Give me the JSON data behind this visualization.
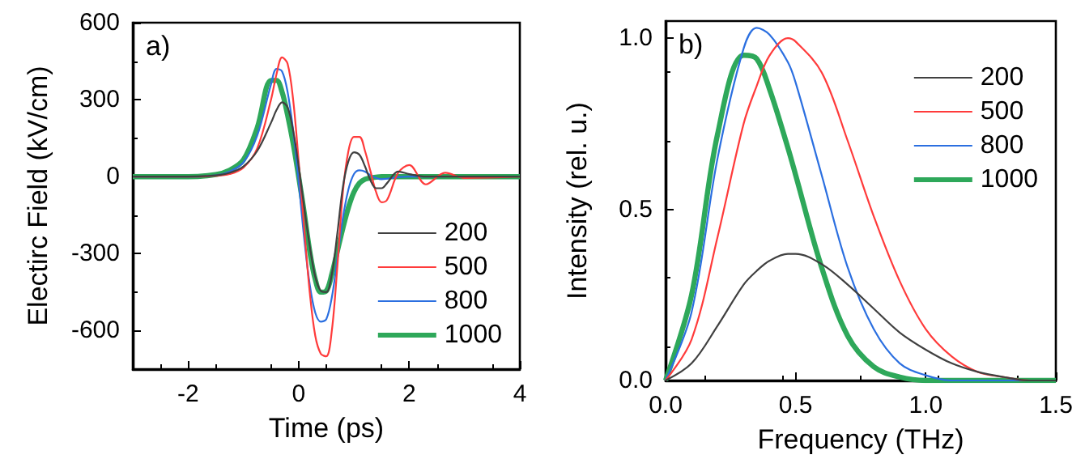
{
  "chart_data": [
    {
      "type": "line",
      "xlabel": "Time (ps)",
      "ylabel": "Electirc Field (kV/cm)",
      "annotations": [
        "a)"
      ],
      "x": [
        -3,
        -2,
        -1.5,
        -1.25,
        -1,
        -0.75,
        -0.5,
        -0.4,
        -0.3,
        -0.2,
        -0.1,
        0,
        0.1,
        0.2,
        0.3,
        0.4,
        0.5,
        0.6,
        0.7,
        0.8,
        0.9,
        1.0,
        1.1,
        1.2,
        1.3,
        1.4,
        1.5,
        1.6,
        1.8,
        2.0,
        2.3,
        2.65,
        3,
        4
      ],
      "series": [
        {
          "name": "200",
          "color": "#404040",
          "values": [
            0,
            0,
            5,
            15,
            40,
            100,
            210,
            260,
            290,
            270,
            180,
            40,
            -120,
            -270,
            -390,
            -445,
            -450,
            -380,
            -220,
            -40,
            60,
            95,
            85,
            40,
            -15,
            -45,
            -45,
            -25,
            20,
            10,
            0,
            0,
            0,
            0
          ]
        },
        {
          "name": "500",
          "color": "#ff3b3b",
          "values": [
            0,
            0,
            3,
            10,
            35,
            110,
            300,
            400,
            465,
            440,
            300,
            60,
            -200,
            -450,
            -620,
            -690,
            -700,
            -600,
            -350,
            -60,
            100,
            155,
            155,
            100,
            20,
            -60,
            -100,
            -90,
            15,
            45,
            -30,
            15,
            -5,
            0
          ]
        },
        {
          "name": "800",
          "color": "#2b6fe0",
          "values": [
            0,
            0,
            5,
            20,
            55,
            160,
            360,
            420,
            410,
            330,
            180,
            -20,
            -240,
            -420,
            -530,
            -565,
            -555,
            -470,
            -320,
            -160,
            -50,
            10,
            25,
            20,
            5,
            -5,
            -10,
            -8,
            -2,
            0,
            0,
            0,
            null,
            null
          ]
        },
        {
          "name": "1000",
          "color": "#2ea85a",
          "values": [
            0,
            0,
            8,
            25,
            65,
            190,
            375,
            375,
            330,
            240,
            130,
            0,
            -140,
            -290,
            -400,
            -450,
            -445,
            -380,
            -290,
            -200,
            -120,
            -60,
            -25,
            -10,
            -5,
            -2,
            0,
            0,
            0,
            0,
            0,
            0,
            0,
            0
          ]
        }
      ],
      "xlim": [
        -3,
        4
      ],
      "xticks": [
        -2,
        0,
        2,
        4
      ],
      "ylim": [
        -750,
        600
      ],
      "yticks": [
        -600,
        -300,
        0,
        300,
        600
      ],
      "grid": false,
      "legend": "bottom right",
      "marker": "none",
      "line_style": "solid"
    },
    {
      "type": "line",
      "xlabel": "Frequency (THz)",
      "ylabel": "Intensity (rel. u.)",
      "annotations": [
        "b)"
      ],
      "x": [
        0,
        0.1,
        0.2,
        0.3,
        0.35,
        0.4,
        0.47,
        0.5,
        0.6,
        0.7,
        0.8,
        0.9,
        1.0,
        1.1,
        1.2,
        1.3,
        1.4,
        1.5
      ],
      "series": [
        {
          "name": "200",
          "color": "#404040",
          "values": [
            0,
            0.05,
            0.16,
            0.28,
            0.32,
            0.35,
            0.37,
            0.37,
            0.34,
            0.28,
            0.21,
            0.14,
            0.09,
            0.05,
            0.025,
            0.01,
            0,
            0
          ]
        },
        {
          "name": "500",
          "color": "#ff3b3b",
          "values": [
            0,
            0.12,
            0.42,
            0.75,
            0.86,
            0.95,
            1.0,
            0.99,
            0.9,
            0.7,
            0.48,
            0.29,
            0.15,
            0.07,
            0.025,
            0.01,
            0,
            0
          ]
        },
        {
          "name": "800",
          "color": "#2b6fe0",
          "values": [
            0,
            0.2,
            0.65,
            0.97,
            1.03,
            1.01,
            0.93,
            0.87,
            0.6,
            0.33,
            0.15,
            0.05,
            0.015,
            0,
            0,
            0,
            0,
            0
          ]
        },
        {
          "name": "1000",
          "color": "#2ea85a",
          "values": [
            0,
            0.25,
            0.72,
            0.95,
            0.94,
            0.85,
            0.68,
            0.6,
            0.33,
            0.13,
            0.04,
            0.01,
            0,
            0,
            0,
            0,
            0,
            0
          ]
        }
      ],
      "xlim": [
        0,
        1.5
      ],
      "xticks": [
        {
          "value": 0,
          "label": "0.0"
        },
        0.5,
        {
          "value": 1,
          "label": "1.0"
        },
        1.5
      ],
      "ylim": [
        0,
        1.05
      ],
      "yticks": [
        {
          "value": 0,
          "label": "0.0"
        },
        0.5,
        {
          "value": 1,
          "label": "1.0"
        }
      ],
      "grid": false,
      "legend": "top right",
      "marker": "none",
      "line_style": "solid"
    }
  ]
}
